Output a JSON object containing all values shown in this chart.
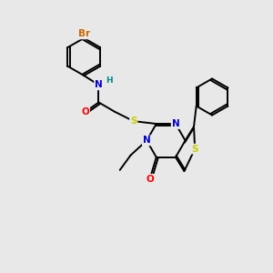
{
  "background_color": "#e8e8e8",
  "bond_color": "#000000",
  "atom_colors": {
    "Br": "#cc6600",
    "N": "#0000cc",
    "O": "#ff0000",
    "S": "#cccc00",
    "H": "#008888",
    "C": "#000000"
  },
  "figsize": [
    3.0,
    3.0
  ],
  "dpi": 100
}
